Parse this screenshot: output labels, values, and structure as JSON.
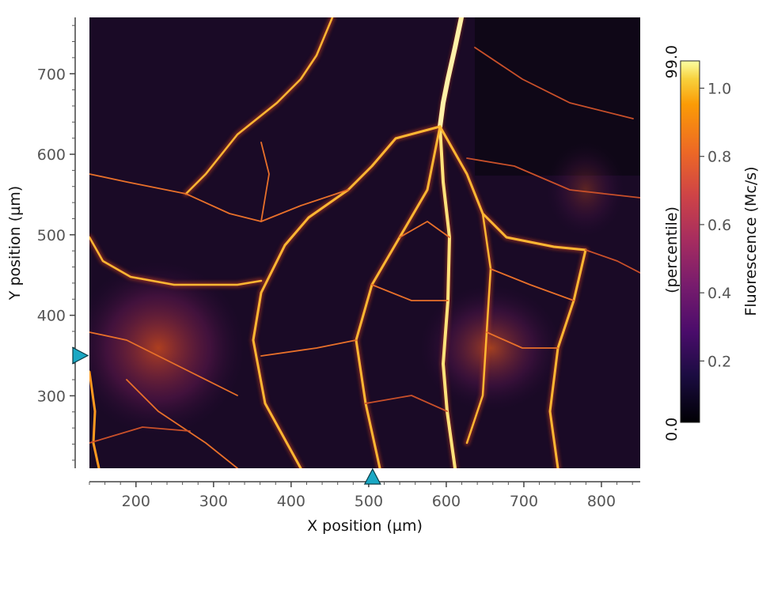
{
  "chart_data": {
    "type": "heatmap",
    "title": "",
    "xlabel": "X position (µm)",
    "ylabel": "Y position (µm)",
    "xlim": [
      140,
      850
    ],
    "ylim": [
      210,
      770
    ],
    "x_ticks": [
      200,
      300,
      400,
      500,
      600,
      700,
      800
    ],
    "y_ticks": [
      300,
      400,
      500,
      600,
      700
    ],
    "x_ticks_labels": [
      "200",
      "300",
      "400",
      "500",
      "600",
      "700",
      "800"
    ],
    "y_ticks_labels": [
      "300",
      "400",
      "500",
      "600",
      "700"
    ],
    "colorbar": {
      "label": "Fluorescence (Mc/s)",
      "percentile_label": "(percentile)",
      "percentile_min": "0.0",
      "percentile_max": "99.0",
      "range": [
        0.02,
        1.08
      ],
      "ticks": [
        0.2,
        0.4,
        0.6,
        0.8,
        1.0
      ],
      "ticks_labels": [
        "0.2",
        "0.4",
        "0.6",
        "0.8",
        "1.0"
      ],
      "colormap": "inferno"
    },
    "markers": [
      {
        "axis": "x",
        "value": 505
      },
      {
        "axis": "y",
        "value": 350
      }
    ],
    "grid": false
  },
  "colors": {
    "marker": "#1aa8c4",
    "background_dark": "#0a0510",
    "vessel_bright": "#fff1a8"
  }
}
